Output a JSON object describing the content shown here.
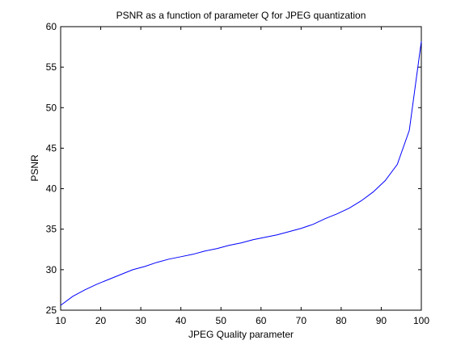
{
  "chart_data": {
    "type": "line",
    "title": "PSNR as a function of parameter Q for JPEG quantization",
    "xlabel": "JPEG Quality parameter",
    "ylabel": "PSNR",
    "xlim": [
      10,
      100
    ],
    "ylim": [
      25,
      60
    ],
    "xticks": [
      10,
      20,
      30,
      40,
      50,
      60,
      70,
      80,
      90,
      100
    ],
    "yticks": [
      25,
      30,
      35,
      40,
      45,
      50,
      55,
      60
    ],
    "grid": false,
    "line_color": "#0000ff",
    "series": [
      {
        "x": [
          10,
          13,
          16,
          19,
          22,
          25,
          28,
          31,
          34,
          37,
          40,
          43,
          46,
          49,
          52,
          55,
          58,
          61,
          64,
          67,
          70,
          73,
          76,
          79,
          82,
          85,
          88,
          91,
          94,
          97,
          100
        ],
        "y": [
          25.6,
          26.7,
          27.5,
          28.2,
          28.8,
          29.4,
          30.0,
          30.4,
          30.9,
          31.3,
          31.6,
          31.9,
          32.3,
          32.6,
          33.0,
          33.3,
          33.7,
          34.0,
          34.3,
          34.7,
          35.1,
          35.6,
          36.3,
          36.9,
          37.6,
          38.5,
          39.6,
          41.0,
          43.0,
          47.2,
          58.2
        ]
      }
    ]
  }
}
